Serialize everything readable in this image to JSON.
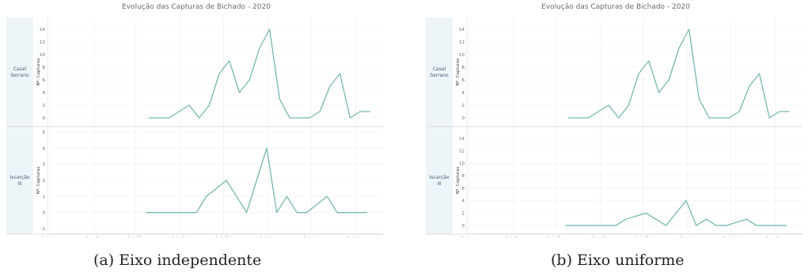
{
  "captions": {
    "a": "(a) Eixo independente",
    "b": "(b) Eixo uniforme"
  },
  "chart_data": [
    {
      "type": "line",
      "title": "Evolução das Capturas de Bichado - 2020",
      "ylabel": "Nº. Capturas",
      "x_ticks": [
        "1 de Jan",
        "1 de Fev",
        "1 de Mar",
        "1 de Abr",
        "1 de Mai",
        "1 de Jun",
        "1 de Jul",
        "1 de Ago"
      ],
      "x_domain": [
        "2020-01-01",
        "2020-08-20"
      ],
      "grid": true,
      "line_color": "#76b7b2",
      "facets": [
        {
          "label": "Casal Serrano",
          "ylim": [
            -0.5,
            15
          ],
          "yticks": [
            0,
            2,
            4,
            6,
            8,
            10,
            12,
            14
          ],
          "x": [
            "2020-03-10",
            "2020-03-17",
            "2020-03-24",
            "2020-03-31",
            "2020-04-07",
            "2020-04-14",
            "2020-04-21",
            "2020-04-28",
            "2020-05-05",
            "2020-05-12",
            "2020-05-19",
            "2020-05-26",
            "2020-06-02",
            "2020-06-09",
            "2020-06-16",
            "2020-06-23",
            "2020-06-30",
            "2020-07-07",
            "2020-07-14",
            "2020-07-21",
            "2020-07-28",
            "2020-08-04",
            "2020-08-11"
          ],
          "y": [
            0,
            0,
            0,
            1,
            2,
            0,
            2,
            7,
            9,
            4,
            6,
            11,
            14,
            3,
            0,
            0,
            0,
            1,
            5,
            7,
            0,
            1,
            1
          ]
        },
        {
          "label": "Iscarção III",
          "ylim": [
            -1,
            5
          ],
          "yticks": [
            -1,
            0,
            1,
            2,
            3,
            4,
            5
          ],
          "x": [
            "2020-03-08",
            "2020-03-15",
            "2020-03-22",
            "2020-03-29",
            "2020-04-05",
            "2020-04-12",
            "2020-04-19",
            "2020-04-26",
            "2020-05-03",
            "2020-05-10",
            "2020-05-17",
            "2020-05-24",
            "2020-05-31",
            "2020-06-07",
            "2020-06-14",
            "2020-06-21",
            "2020-06-28",
            "2020-07-05",
            "2020-07-12",
            "2020-07-19",
            "2020-07-26",
            "2020-08-02",
            "2020-08-09"
          ],
          "y": [
            0,
            0,
            0,
            0,
            0,
            0,
            1,
            1.5,
            2,
            1,
            0,
            2,
            4,
            0,
            1,
            0,
            0,
            0.5,
            1,
            0,
            0,
            0,
            0
          ]
        }
      ]
    },
    {
      "type": "line",
      "title": "Evolução das Capturas de Bichado - 2020",
      "ylabel": "Nº. Capturas",
      "x_ticks": [
        "1 de Jan",
        "1 de Fev",
        "1 de Mar",
        "1 de Abr",
        "1 de Mai",
        "1 de Jun",
        "1 de Jul",
        "1 de Ago"
      ],
      "x_domain": [
        "2020-01-01",
        "2020-08-20"
      ],
      "grid": true,
      "line_color": "#76b7b2",
      "facets": [
        {
          "label": "Casal Serrano",
          "ylim": [
            -0.5,
            15
          ],
          "yticks": [
            0,
            2,
            4,
            6,
            8,
            10,
            12,
            14
          ],
          "x": [
            "2020-03-10",
            "2020-03-17",
            "2020-03-24",
            "2020-03-31",
            "2020-04-07",
            "2020-04-14",
            "2020-04-21",
            "2020-04-28",
            "2020-05-05",
            "2020-05-12",
            "2020-05-19",
            "2020-05-26",
            "2020-06-02",
            "2020-06-09",
            "2020-06-16",
            "2020-06-23",
            "2020-06-30",
            "2020-07-07",
            "2020-07-14",
            "2020-07-21",
            "2020-07-28",
            "2020-08-04",
            "2020-08-11"
          ],
          "y": [
            0,
            0,
            0,
            1,
            2,
            0,
            2,
            7,
            9,
            4,
            6,
            11,
            14,
            3,
            0,
            0,
            0,
            1,
            5,
            7,
            0,
            1,
            1
          ]
        },
        {
          "label": "Iscarção III",
          "ylim": [
            -0.5,
            15
          ],
          "yticks": [
            0,
            2,
            4,
            6,
            8,
            10,
            12,
            14
          ],
          "x": [
            "2020-03-08",
            "2020-03-15",
            "2020-03-22",
            "2020-03-29",
            "2020-04-05",
            "2020-04-12",
            "2020-04-19",
            "2020-04-26",
            "2020-05-03",
            "2020-05-10",
            "2020-05-17",
            "2020-05-24",
            "2020-05-31",
            "2020-06-07",
            "2020-06-14",
            "2020-06-21",
            "2020-06-28",
            "2020-07-05",
            "2020-07-12",
            "2020-07-19",
            "2020-07-26",
            "2020-08-02",
            "2020-08-09"
          ],
          "y": [
            0,
            0,
            0,
            0,
            0,
            0,
            1,
            1.5,
            2,
            1,
            0,
            2,
            4,
            0,
            1,
            0,
            0,
            0.5,
            1,
            0,
            0,
            0,
            0
          ]
        }
      ]
    }
  ]
}
